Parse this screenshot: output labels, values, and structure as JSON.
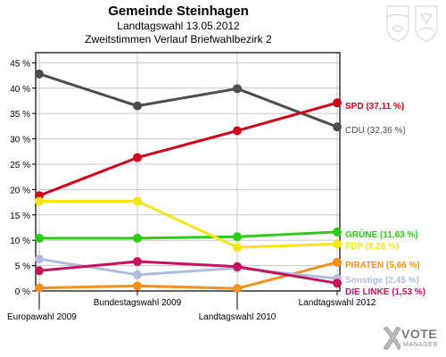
{
  "header": {
    "title": "Gemeinde Steinhagen",
    "subtitle1": "Landtagswahl 13.05.2012",
    "subtitle2": "Zweitstimmen Verlauf Briefwahlbezirk 2"
  },
  "branding": {
    "name": "VOTE",
    "tagline": "MANAGER",
    "emblem_icon": "state-coat-of-arms-icon"
  },
  "chart_data": {
    "type": "line",
    "title": "Gemeinde Steinhagen",
    "subtitle": "Zweitstimmen Verlauf Briefwahlbezirk 2",
    "xlabel": "",
    "ylabel": "",
    "x": [
      "Europawahl 2009",
      "Bundestagswahl 2009",
      "Landtagswahl 2010",
      "Landtagswahl 2012"
    ],
    "ylim": [
      0,
      47
    ],
    "yticks": [
      0,
      5,
      10,
      15,
      20,
      25,
      30,
      35,
      40,
      45
    ],
    "ytick_labels": [
      "0 %",
      "5 %",
      "10 %",
      "15 %",
      "20 %",
      "25 %",
      "30 %",
      "35 %",
      "40 %",
      "45 %"
    ],
    "grid": true,
    "legend_position": "right (end-of-line labels)",
    "series": [
      {
        "name": "CDU",
        "label": "CDU (32,36 %)",
        "color": "#4d4d4d",
        "values": [
          42.8,
          36.5,
          39.9,
          32.36
        ]
      },
      {
        "name": "SPD",
        "label": "SPD (37,11 %)",
        "color": "#d0021b",
        "values": [
          18.8,
          26.3,
          31.6,
          37.11
        ]
      },
      {
        "name": "GRÜNE",
        "label": "GRÜNE (11,63 %)",
        "color": "#2ecc1a",
        "values": [
          10.4,
          10.4,
          10.7,
          11.63
        ]
      },
      {
        "name": "FDP",
        "label": "FDP (9,26 %)",
        "color": "#f7e41a",
        "values": [
          17.7,
          17.7,
          8.6,
          9.26
        ]
      },
      {
        "name": "PIRATEN",
        "label": "PIRATEN (5,66 %)",
        "color": "#f4911e",
        "values": [
          0.6,
          1.0,
          0.5,
          5.66
        ]
      },
      {
        "name": "Sonstige",
        "label": "Sonstige (2,45 %)",
        "color": "#b0bde0",
        "values": [
          6.3,
          3.2,
          4.5,
          2.45
        ]
      },
      {
        "name": "DIE LINKE",
        "label": "DIE LINKE (1,53 %)",
        "color": "#c8135a",
        "values": [
          4.0,
          5.8,
          4.8,
          1.53
        ]
      }
    ]
  }
}
